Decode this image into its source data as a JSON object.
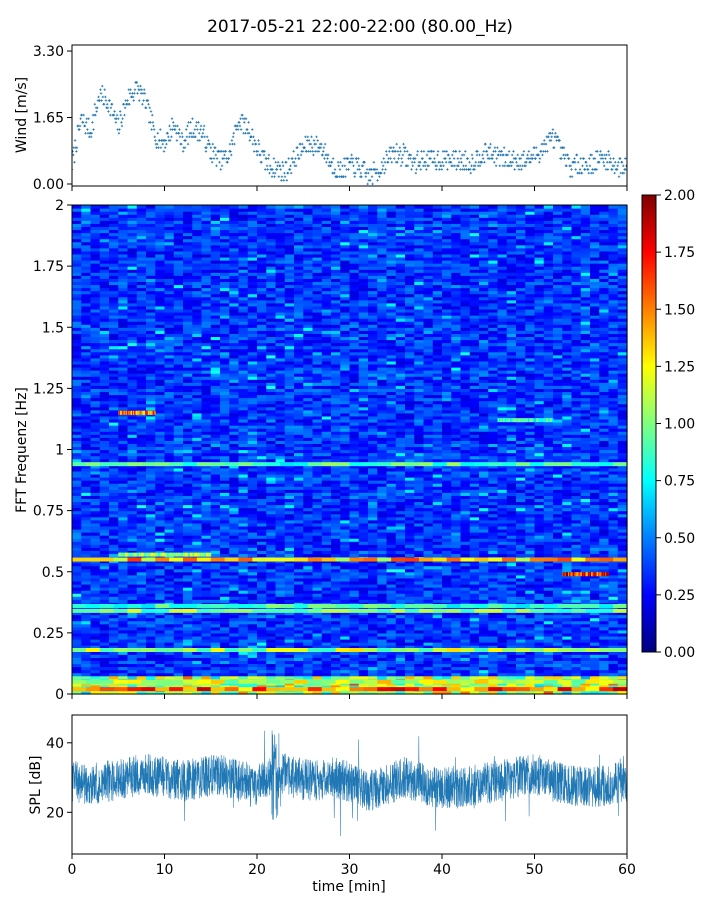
{
  "title": "2017-05-21 22:00-22:00 (80.00_Hz)",
  "chart_data": [
    {
      "type": "scatter",
      "ylabel": "Wind [m/s]",
      "ylim": [
        -0.05,
        3.45
      ],
      "xlim": [
        0,
        60
      ],
      "yticks": [
        "0.00",
        "1.65",
        "3.30"
      ],
      "ytick_values": [
        0.0,
        1.65,
        3.3
      ],
      "color": "#1f77b4",
      "series": [
        {
          "x": [
            0,
            1,
            2,
            3,
            4,
            5,
            6,
            7,
            8,
            9,
            10,
            11,
            12,
            13,
            14,
            15,
            16,
            17,
            18,
            19,
            20,
            21,
            22,
            23,
            24,
            25,
            26,
            27,
            28,
            29,
            30,
            31,
            32,
            33,
            34,
            35,
            36,
            37,
            38,
            39,
            40,
            41,
            42,
            43,
            44,
            45,
            46,
            47,
            48,
            49,
            50,
            51,
            52,
            53,
            54,
            55,
            56,
            57,
            58,
            59,
            60
          ],
          "y": [
            0.5,
            1.6,
            1.3,
            2.2,
            2.0,
            1.4,
            2.1,
            2.4,
            2.0,
            1.2,
            1.0,
            1.5,
            1.0,
            1.4,
            1.3,
            0.8,
            0.6,
            0.7,
            1.6,
            1.4,
            0.9,
            0.5,
            0.4,
            0.3,
            0.6,
            0.9,
            1.0,
            0.9,
            0.5,
            0.3,
            0.5,
            0.4,
            0.2,
            0.3,
            0.6,
            0.8,
            0.7,
            0.5,
            0.6,
            0.6,
            0.6,
            0.6,
            0.6,
            0.5,
            0.7,
            0.8,
            0.7,
            0.6,
            0.6,
            0.6,
            0.7,
            0.9,
            1.2,
            0.7,
            0.4,
            0.5,
            0.5,
            0.6,
            0.6,
            0.4,
            0.5
          ]
        }
      ]
    },
    {
      "type": "heatmap",
      "ylabel": "FFT Frequenz [Hz]",
      "ylim": [
        0,
        2
      ],
      "xlim": [
        0,
        60
      ],
      "yticks": [
        "0",
        "0.25",
        "0.5",
        "0.75",
        "1",
        "1.25",
        "1.5",
        "1.75",
        "2"
      ],
      "ytick_values": [
        0,
        0.25,
        0.5,
        0.75,
        1,
        1.25,
        1.5,
        1.75,
        2
      ],
      "colormap": "jet",
      "colorbar": {
        "range": [
          0,
          2
        ],
        "ticks": [
          "0.00",
          "0.25",
          "0.50",
          "0.75",
          "1.00",
          "1.25",
          "1.50",
          "1.75",
          "2.00"
        ],
        "tick_values": [
          0,
          0.25,
          0.5,
          0.75,
          1.0,
          1.25,
          1.5,
          1.75,
          2.0
        ]
      },
      "bands": [
        {
          "freq": 0.02,
          "level": 1.6,
          "x": [
            0,
            60
          ]
        },
        {
          "freq": 0.05,
          "level": 1.2,
          "x": [
            0,
            60
          ]
        },
        {
          "freq": 0.18,
          "level": 1.1,
          "x": [
            0,
            60
          ]
        },
        {
          "freq": 0.34,
          "level": 1.0,
          "x": [
            0,
            60
          ]
        },
        {
          "freq": 0.36,
          "level": 0.9,
          "x": [
            0,
            60
          ]
        },
        {
          "freq": 0.49,
          "level": 1.7,
          "x": [
            53,
            58
          ]
        },
        {
          "freq": 0.55,
          "level": 1.4,
          "x": [
            0,
            60
          ]
        },
        {
          "freq": 0.57,
          "level": 1.1,
          "x": [
            5,
            15
          ]
        },
        {
          "freq": 0.94,
          "level": 0.9,
          "x": [
            0,
            60
          ]
        },
        {
          "freq": 1.15,
          "level": 1.5,
          "x": [
            5,
            9
          ]
        },
        {
          "freq": 1.12,
          "level": 0.9,
          "x": [
            46,
            52
          ]
        }
      ]
    },
    {
      "type": "line",
      "xlabel": "time [min]",
      "ylabel": "SPL [dB]",
      "xlim": [
        0,
        60
      ],
      "ylim": [
        8,
        48
      ],
      "xticks": [
        "0",
        "10",
        "20",
        "30",
        "40",
        "50",
        "60"
      ],
      "xtick_values": [
        0,
        10,
        20,
        30,
        40,
        50,
        60
      ],
      "yticks": [
        "20",
        "40"
      ],
      "ytick_values": [
        20,
        40
      ],
      "color": "#1f77b4",
      "series": [
        {
          "x": [
            0,
            2,
            4,
            6,
            8,
            10,
            12,
            14,
            16,
            18,
            20,
            22,
            24,
            26,
            28,
            30,
            32,
            34,
            36,
            38,
            40,
            42,
            44,
            46,
            48,
            50,
            52,
            54,
            56,
            58,
            60
          ],
          "y": [
            29,
            28,
            29,
            30,
            31,
            30,
            29,
            30,
            31,
            29,
            28,
            32,
            30,
            29,
            30,
            29,
            26,
            28,
            30,
            28,
            27,
            27,
            28,
            29,
            30,
            31,
            29,
            28,
            27,
            28,
            29
          ]
        }
      ]
    }
  ]
}
